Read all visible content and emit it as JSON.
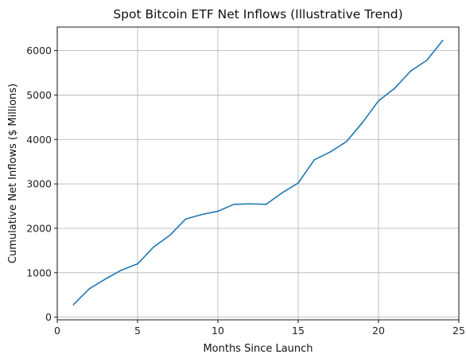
{
  "chart_data": {
    "type": "line",
    "title": "Spot Bitcoin ETF Net Inflows (Illustrative Trend)",
    "xlabel": "Months Since Launch",
    "ylabel": "Cumulative Net Inflows ($ Millions)",
    "xlim": [
      0,
      25
    ],
    "ylim": [
      -60,
      6530
    ],
    "x_ticks": [
      0,
      5,
      10,
      15,
      20,
      25
    ],
    "y_ticks": [
      0,
      1000,
      2000,
      3000,
      4000,
      5000,
      6000
    ],
    "x_tick_labels": [
      "0",
      "5",
      "10",
      "15",
      "20",
      "25"
    ],
    "y_tick_labels": [
      "0",
      "1000",
      "2000",
      "3000",
      "4000",
      "5000",
      "6000"
    ],
    "grid": true,
    "legend": false,
    "series": [
      {
        "color": "#1f77b4",
        "x": [
          1,
          2,
          3,
          4,
          5,
          6,
          7,
          8,
          9,
          10,
          11,
          12,
          13,
          14,
          15,
          16,
          17,
          18,
          19,
          20,
          21,
          22,
          23,
          24
        ],
        "y": [
          280,
          640,
          860,
          1060,
          1200,
          1580,
          1840,
          2210,
          2310,
          2385,
          2540,
          2550,
          2540,
          2800,
          3020,
          3540,
          3720,
          3950,
          4380,
          4870,
          5150,
          5540,
          5780,
          6230
        ]
      }
    ]
  }
}
